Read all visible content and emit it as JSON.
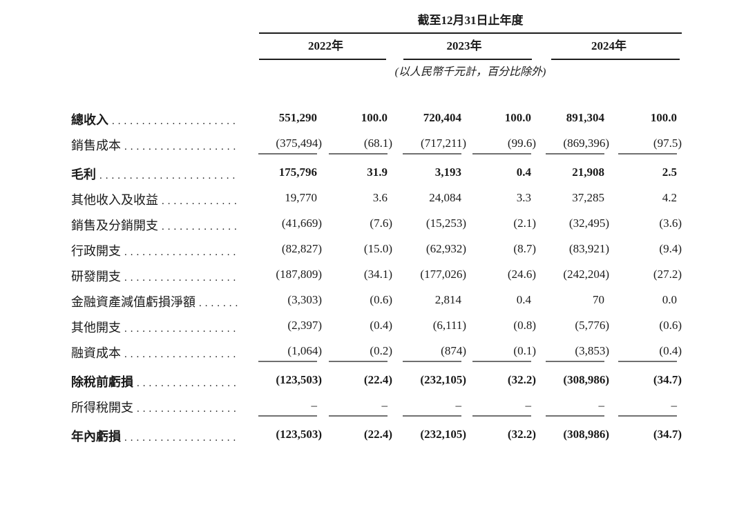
{
  "colors": {
    "text": "#1a1a1a",
    "rule_dark": "#1c1c1c",
    "rule_gray": "#6f6f6f",
    "paper": "#ffffff"
  },
  "table": {
    "period_header": "截至12月31日止年度",
    "unit_note": "(以人民幣千元計，百分比除外)",
    "year_columns": [
      "2022年",
      "2023年",
      "2024年"
    ],
    "rows": [
      {
        "label": "總收入",
        "bold": true,
        "underline": false,
        "values": [
          "551,290",
          "100.0",
          "720,404",
          "100.0",
          "891,304",
          "100.0"
        ]
      },
      {
        "label": "銷售成本",
        "bold": false,
        "underline": true,
        "values": [
          "(375,494)",
          "(68.1)",
          "(717,211)",
          "(99.6)",
          "(869,396)",
          "(97.5)"
        ]
      },
      {
        "label": "毛利",
        "bold": true,
        "underline": false,
        "values": [
          "175,796",
          "31.9",
          "3,193",
          "0.4",
          "21,908",
          "2.5"
        ]
      },
      {
        "label": "其他收入及收益",
        "bold": false,
        "underline": false,
        "values": [
          "19,770",
          "3.6",
          "24,084",
          "3.3",
          "37,285",
          "4.2"
        ]
      },
      {
        "label": "銷售及分銷開支",
        "bold": false,
        "underline": false,
        "values": [
          "(41,669)",
          "(7.6)",
          "(15,253)",
          "(2.1)",
          "(32,495)",
          "(3.6)"
        ]
      },
      {
        "label": "行政開支",
        "bold": false,
        "underline": false,
        "values": [
          "(82,827)",
          "(15.0)",
          "(62,932)",
          "(8.7)",
          "(83,921)",
          "(9.4)"
        ]
      },
      {
        "label": "研發開支",
        "bold": false,
        "underline": false,
        "values": [
          "(187,809)",
          "(34.1)",
          "(177,026)",
          "(24.6)",
          "(242,204)",
          "(27.2)"
        ]
      },
      {
        "label": "金融資產減值虧損淨額",
        "bold": false,
        "underline": false,
        "values": [
          "(3,303)",
          "(0.6)",
          "2,814",
          "0.4",
          "70",
          "0.0"
        ]
      },
      {
        "label": "其他開支",
        "bold": false,
        "underline": false,
        "values": [
          "(2,397)",
          "(0.4)",
          "(6,111)",
          "(0.8)",
          "(5,776)",
          "(0.6)"
        ]
      },
      {
        "label": "融資成本",
        "bold": false,
        "underline": true,
        "values": [
          "(1,064)",
          "(0.2)",
          "(874)",
          "(0.1)",
          "(3,853)",
          "(0.4)"
        ]
      },
      {
        "label": "除稅前虧損",
        "bold": true,
        "underline": false,
        "values": [
          "(123,503)",
          "(22.4)",
          "(232,105)",
          "(32.2)",
          "(308,986)",
          "(34.7)"
        ]
      },
      {
        "label": "所得稅開支",
        "bold": false,
        "underline": true,
        "values": [
          "–",
          "–",
          "–",
          "–",
          "–",
          "–"
        ]
      },
      {
        "label": "年內虧損",
        "bold": true,
        "underline": false,
        "values": [
          "(123,503)",
          "(22.4)",
          "(232,105)",
          "(32.2)",
          "(308,986)",
          "(34.7)"
        ]
      }
    ]
  }
}
